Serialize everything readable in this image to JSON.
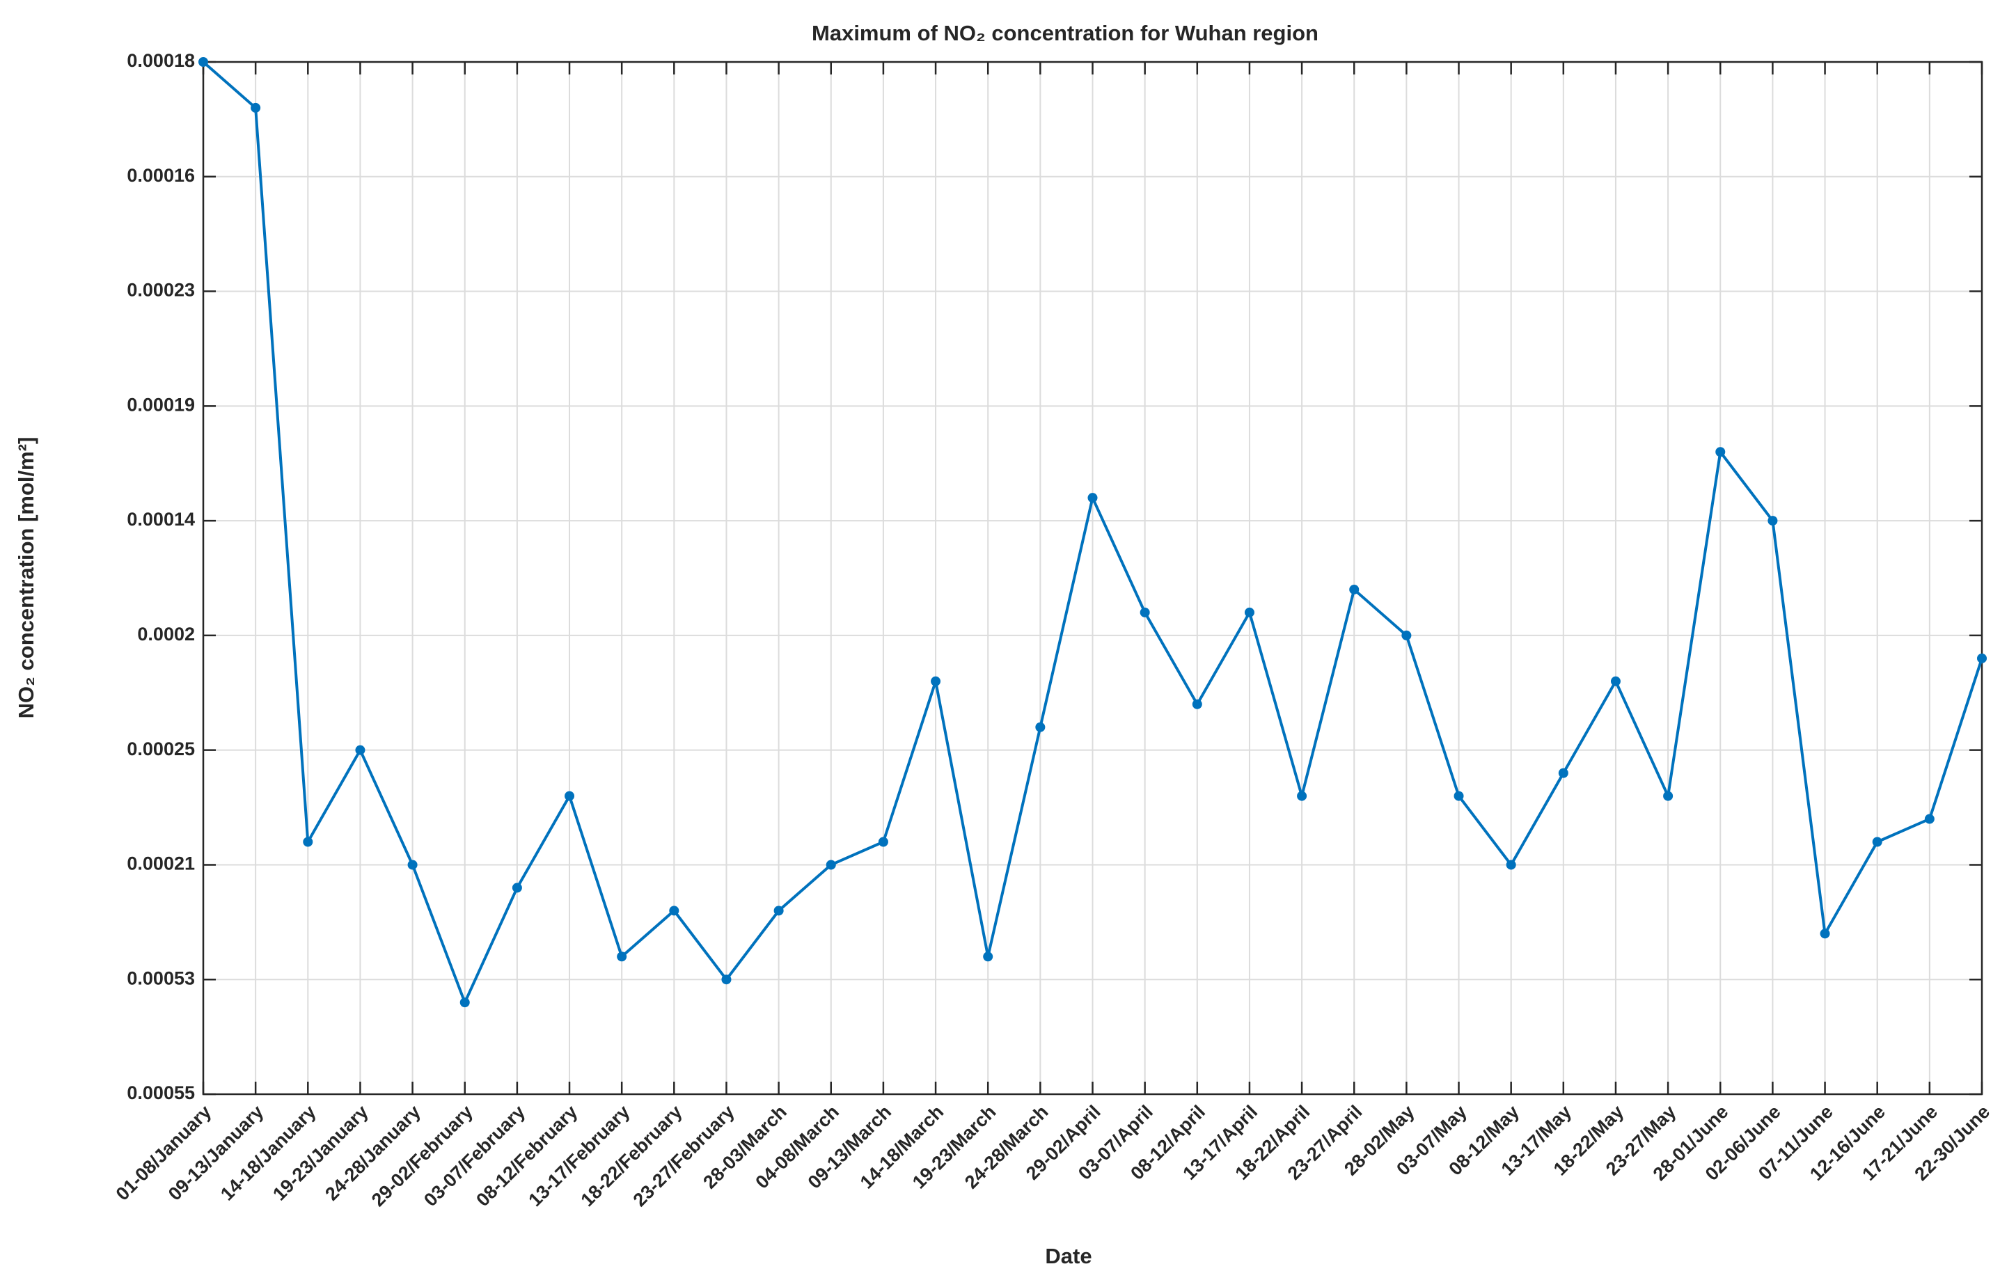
{
  "chart_data": {
    "type": "line",
    "title": "Maximum of NO₂ concentration for Wuhan region",
    "x_label": "Date",
    "y_label": "NO₂ concentration [mol/m²]",
    "categories": [
      "01-08/January",
      "09-13/January",
      "14-18/January",
      "19-23/January",
      "24-28/January",
      "29-02/February",
      "03-07/February",
      "08-12/February",
      "13-17/February",
      "18-22/February",
      "23-27/February",
      "28-03/March",
      "04-08/March",
      "09-13/March",
      "14-18/March",
      "19-23/March",
      "24-28/March",
      "29-02/April",
      "03-07/April",
      "08-12/April",
      "13-17/April",
      "18-22/April",
      "23-27/April",
      "28-02/May",
      "03-07/May",
      "08-12/May",
      "13-17/May",
      "18-22/May",
      "23-27/May",
      "28-01/June",
      "02-06/June",
      "07-11/June",
      "12-16/June",
      "17-21/June",
      "22-30/June"
    ],
    "series": [
      {
        "name": "NO₂",
        "color": "#0072bd",
        "values": [
          9,
          8.6,
          2.2,
          3.0,
          2.0,
          0.8,
          1.8,
          2.6,
          1.2,
          1.6,
          1.0,
          1.6,
          2.0,
          2.2,
          3.6,
          1.2,
          3.2,
          5.2,
          4.2,
          3.4,
          4.2,
          2.6,
          4.4,
          4.0,
          2.6,
          2.0,
          2.8,
          3.6,
          2.6,
          5.6,
          5.0,
          1.4,
          2.2,
          2.4,
          3.8
        ]
      }
    ],
    "ylim": [
      0,
      9
    ],
    "yticks": [
      {
        "value": 0,
        "label": "0.00055"
      },
      {
        "value": 1,
        "label": "0.00053"
      },
      {
        "value": 2,
        "label": "0.00021"
      },
      {
        "value": 3,
        "label": "0.00025"
      },
      {
        "value": 4,
        "label": "0.0002"
      },
      {
        "value": 5,
        "label": "0.00014"
      },
      {
        "value": 6,
        "label": "0.00019"
      },
      {
        "value": 7,
        "label": "0.00023"
      },
      {
        "value": 8,
        "label": "0.00016"
      },
      {
        "value": 9,
        "label": "0.00018"
      }
    ],
    "grid": true
  }
}
